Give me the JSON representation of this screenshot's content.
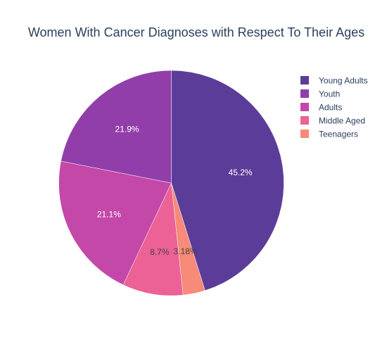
{
  "chart_data": {
    "type": "pie",
    "title": "Women With Cancer Diagnoses with Respect To Their Ages",
    "legend_position": "top-right",
    "slices": [
      {
        "name": "Young Adults",
        "value": 45.2,
        "label": "45.2%",
        "color": "#5c3c99",
        "label_color": "#ffffff"
      },
      {
        "name": "Teenagers",
        "value": 3.18,
        "label": "3.18%",
        "color": "#f78a78",
        "label_color": "#444444"
      },
      {
        "name": "Middle Aged",
        "value": 8.7,
        "label": "8.7%",
        "color": "#ec6196",
        "label_color": "#444444"
      },
      {
        "name": "Adults",
        "value": 21.1,
        "label": "21.1%",
        "color": "#c348a8",
        "label_color": "#ffffff"
      },
      {
        "name": "Youth",
        "value": 21.9,
        "label": "21.9%",
        "color": "#913eaa",
        "label_color": "#ffffff"
      }
    ],
    "legend": [
      {
        "name": "Young Adults",
        "color": "#5c3c99"
      },
      {
        "name": "Youth",
        "color": "#913eaa"
      },
      {
        "name": "Adults",
        "color": "#c348a8"
      },
      {
        "name": "Middle Aged",
        "color": "#ec6196"
      },
      {
        "name": "Teenagers",
        "color": "#f78a78"
      }
    ]
  }
}
